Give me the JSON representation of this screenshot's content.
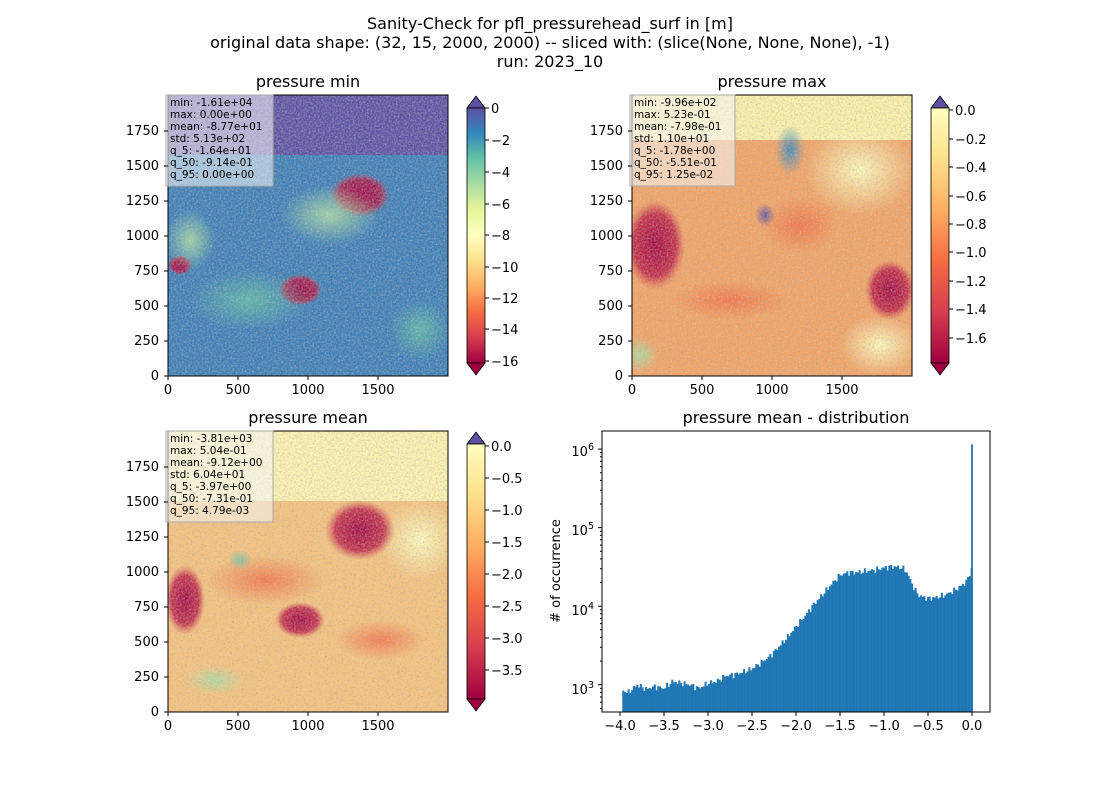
{
  "figure": {
    "title_lines": [
      "Sanity-Check for pfl_pressurehead_surf in [m]",
      "original data shape: (32, 15, 2000, 2000) -- sliced with: (slice(None, None, None), -1)",
      "run: 2023_10"
    ]
  },
  "chart_data": [
    {
      "type": "heatmap",
      "title": "pressure min",
      "xlim": [
        0,
        2000
      ],
      "ylim": [
        0,
        2000
      ],
      "xticks": [
        "0",
        "500",
        "1000",
        "1500"
      ],
      "yticks": [
        "0",
        "250",
        "500",
        "750",
        "1000",
        "1250",
        "1500",
        "1750"
      ],
      "colormap": "Spectral",
      "colorbar": {
        "ticks": [
          "0",
          "−2",
          "−4",
          "−6",
          "−8",
          "−10",
          "−12",
          "−14",
          "−16"
        ],
        "vmin": -16.4,
        "vmax": 0.0,
        "extend": "both"
      },
      "stats": [
        "min: -1.61e+04",
        "max: 0.00e+00",
        "mean: -8.77e+01",
        "std: 5.13e+02",
        "q_5: -1.64e+01",
        "q_50: -9.14e-01",
        "q_95: 0.00e+00"
      ]
    },
    {
      "type": "heatmap",
      "title": "pressure max",
      "xlim": [
        0,
        2000
      ],
      "ylim": [
        0,
        2000
      ],
      "xticks": [
        "0",
        "500",
        "1000",
        "1500"
      ],
      "yticks": [
        "0",
        "250",
        "500",
        "750",
        "1000",
        "1250",
        "1500",
        "1750"
      ],
      "colormap": "Spectral",
      "colorbar": {
        "ticks": [
          "0.0",
          "−0.2",
          "−0.4",
          "−0.6",
          "−0.8",
          "−1.0",
          "−1.2",
          "−1.4",
          "−1.6"
        ],
        "vmin": -1.78,
        "vmax": 0.0125,
        "extend": "both"
      },
      "stats": [
        "min: -9.96e+02",
        "max: 5.23e-01",
        "mean: -7.98e-01",
        "std: 1.10e+01",
        "q_5: -1.78e+00",
        "q_50: -5.51e-01",
        "q_95: 1.25e-02"
      ]
    },
    {
      "type": "heatmap",
      "title": "pressure mean",
      "xlim": [
        0,
        2000
      ],
      "ylim": [
        0,
        2000
      ],
      "xticks": [
        "0",
        "500",
        "1000",
        "1500"
      ],
      "yticks": [
        "0",
        "250",
        "500",
        "750",
        "1000",
        "1250",
        "1500",
        "1750"
      ],
      "colormap": "Spectral",
      "colorbar": {
        "ticks": [
          "0.0",
          "−0.5",
          "−1.0",
          "−1.5",
          "−2.0",
          "−2.5",
          "−3.0",
          "−3.5"
        ],
        "vmin": -3.97,
        "vmax": 0.0048,
        "extend": "both"
      },
      "stats": [
        "min: -3.81e+03",
        "max: 5.04e-01",
        "mean: -9.12e+00",
        "std: 6.04e+01",
        "q_5: -3.97e+00",
        "q_50: -7.31e-01",
        "q_95: 4.79e-03"
      ]
    },
    {
      "type": "bar",
      "title": "pressure mean - distribution",
      "ylabel": "# of occurrence",
      "xlabel": "",
      "yscale": "log",
      "xlim": [
        -4.2,
        0.2
      ],
      "ylim": [
        450,
        1700000
      ],
      "xticks": [
        "−4.0",
        "−3.5",
        "−3.0",
        "−2.5",
        "−2.0",
        "−1.5",
        "−1.0",
        "−0.5",
        "0.0"
      ],
      "yticks": [
        {
          "base": "10",
          "exp": "3"
        },
        {
          "base": "10",
          "exp": "4"
        },
        {
          "base": "10",
          "exp": "5"
        },
        {
          "base": "10",
          "exp": "6"
        }
      ],
      "bar_color": "#1f77b4",
      "hist_start": -3.97,
      "hist_end": 0.0,
      "anchors": [
        [
          -3.97,
          850
        ],
        [
          -3.9,
          800
        ],
        [
          -3.8,
          1000
        ],
        [
          -3.7,
          880
        ],
        [
          -3.6,
          950
        ],
        [
          -3.5,
          900
        ],
        [
          -3.4,
          1100
        ],
        [
          -3.3,
          1050
        ],
        [
          -3.2,
          1000
        ],
        [
          -3.1,
          900
        ],
        [
          -3.0,
          1050
        ],
        [
          -2.9,
          1100
        ],
        [
          -2.8,
          1300
        ],
        [
          -2.7,
          1350
        ],
        [
          -2.6,
          1450
        ],
        [
          -2.5,
          1600
        ],
        [
          -2.4,
          1900
        ],
        [
          -2.3,
          2300
        ],
        [
          -2.2,
          3000
        ],
        [
          -2.1,
          4000
        ],
        [
          -2.0,
          5500
        ],
        [
          -1.9,
          7500
        ],
        [
          -1.8,
          10500
        ],
        [
          -1.7,
          14000
        ],
        [
          -1.6,
          19000
        ],
        [
          -1.5,
          25000
        ],
        [
          -1.4,
          27000
        ],
        [
          -1.3,
          27000
        ],
        [
          -1.2,
          28000
        ],
        [
          -1.1,
          29000
        ],
        [
          -1.0,
          31000
        ],
        [
          -0.9,
          32000
        ],
        [
          -0.8,
          31000
        ],
        [
          -0.75,
          28000
        ],
        [
          -0.7,
          21000
        ],
        [
          -0.65,
          16000
        ],
        [
          -0.6,
          13500
        ],
        [
          -0.5,
          12500
        ],
        [
          -0.4,
          13000
        ],
        [
          -0.3,
          14000
        ],
        [
          -0.2,
          16000
        ],
        [
          -0.1,
          19000
        ],
        [
          -0.04,
          23000
        ],
        [
          -0.02,
          30000
        ]
      ],
      "spike": [
        -0.005,
        1150000
      ]
    }
  ]
}
